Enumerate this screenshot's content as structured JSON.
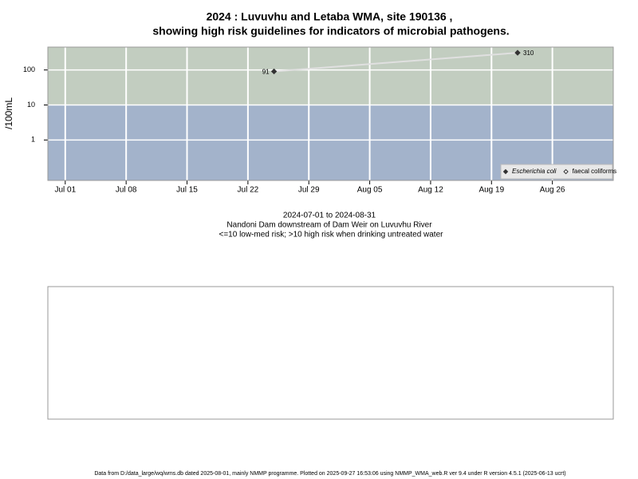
{
  "chart_data": {
    "type": "line",
    "title": [
      "2024 : Luvuvhu and Letaba WMA, site 190136 ,",
      "showing high risk guidelines for indicators of microbial pathogens."
    ],
    "ylabel": "/100mL",
    "x": [
      "Jul 25",
      "Aug 22"
    ],
    "series": [
      {
        "name": "Escherichia coli",
        "color": "#333333",
        "marker": "filled",
        "values": [
          91,
          310
        ]
      },
      {
        "name": "faecal coliforms",
        "color": "#333333",
        "marker": "open",
        "values": [
          null,
          null
        ]
      }
    ],
    "line_color": "#e0e0e0",
    "xlim": [
      "Jun 29",
      "Sep 02"
    ],
    "xticks": [
      "Jul 01",
      "Jul 08",
      "Jul 15",
      "Jul 22",
      "Jul 29",
      "Aug 05",
      "Aug 12",
      "Aug 19",
      "Aug 26"
    ],
    "ylim": [
      0.07,
      450
    ],
    "yticks": [
      1,
      10,
      100
    ],
    "log_y": true,
    "grid": true,
    "risk_threshold": 10,
    "high_risk_color": "#c2cdc0",
    "low_risk_color": "#a3b3cb",
    "legend": "bottom-right",
    "captions": [
      "2024-07-01 to 2024-08-31",
      "Nandoni Dam downstream of Dam Weir on Luvuvhu River",
      "<=10 low-med risk; >10 high risk when drinking untreated water"
    ],
    "footer": "Data from D:/data_large/wq/wms.db dated 2025-08-01, mainly NMMP programme. Plotted on 2025-09-27 16:53:06 using NMMP_WMA_web.R ver 9.4 under R version 4.5.1 (2025-06-13 ucrt)"
  }
}
